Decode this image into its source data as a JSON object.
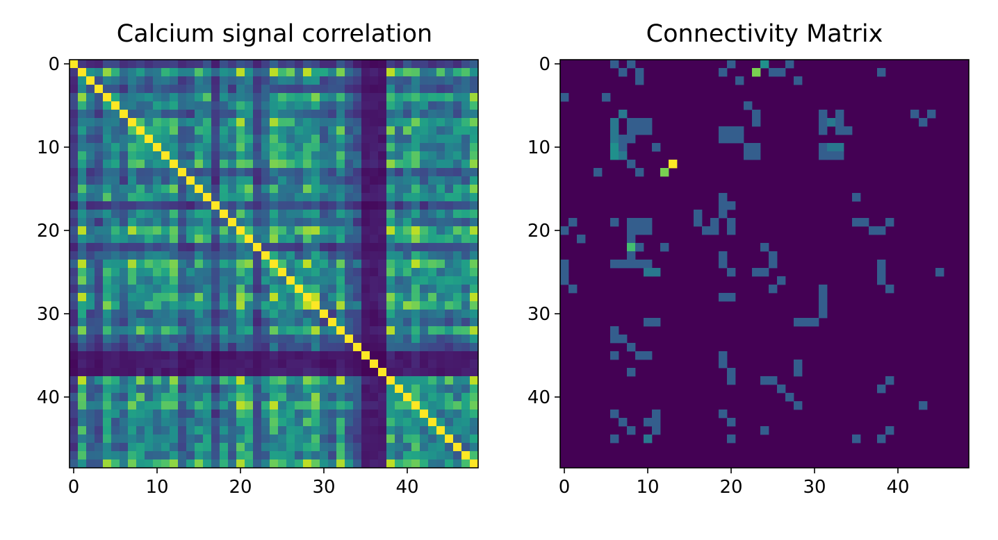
{
  "chart_data": [
    {
      "type": "heatmap",
      "title": "Calcium signal correlation",
      "xlabel": "",
      "ylabel": "",
      "size": 49,
      "xlim": [
        -0.5,
        48.5
      ],
      "ylim": [
        48.5,
        -0.5
      ],
      "xticks": [
        0,
        10,
        20,
        30,
        40
      ],
      "yticks": [
        0,
        10,
        20,
        30,
        40
      ],
      "xtick_labels": [
        "0",
        "10",
        "20",
        "30",
        "40"
      ],
      "ytick_labels": [
        "0",
        "10",
        "20",
        "30",
        "40"
      ],
      "colormap": "viridis",
      "value_range": [
        0,
        1
      ],
      "diagonal_value": 1.0,
      "description_of_values": "symmetric correlation matrix; dark bands near rows/columns 35-37"
    },
    {
      "type": "heatmap",
      "title": "Connectivity Matrix",
      "xlabel": "",
      "ylabel": "",
      "size": 49,
      "xlim": [
        -0.5,
        48.5
      ],
      "ylim": [
        48.5,
        -0.5
      ],
      "xticks": [
        0,
        10,
        20,
        30,
        40
      ],
      "yticks": [
        0,
        10,
        20,
        30,
        40
      ],
      "xtick_labels": [
        "0",
        "10",
        "20",
        "30",
        "40"
      ],
      "ytick_labels": [
        "0",
        "10",
        "20",
        "30",
        "40"
      ],
      "colormap": "viridis",
      "value_range": [
        0,
        1
      ],
      "background_value": 0,
      "cells": [
        [
          0,
          6,
          0.3
        ],
        [
          0,
          8,
          0.3
        ],
        [
          0,
          20,
          0.3
        ],
        [
          0,
          24,
          0.5
        ],
        [
          0,
          27,
          0.3
        ],
        [
          1,
          7,
          0.3
        ],
        [
          1,
          9,
          0.3
        ],
        [
          1,
          19,
          0.3
        ],
        [
          1,
          23,
          0.8
        ],
        [
          1,
          25,
          0.3
        ],
        [
          1,
          26,
          0.3
        ],
        [
          1,
          38,
          0.3
        ],
        [
          2,
          9,
          0.3
        ],
        [
          2,
          21,
          0.3
        ],
        [
          2,
          28,
          0.3
        ],
        [
          4,
          0,
          0.3
        ],
        [
          4,
          5,
          0.3
        ],
        [
          5,
          22,
          0.3
        ],
        [
          6,
          7,
          0.4
        ],
        [
          6,
          23,
          0.3
        ],
        [
          6,
          31,
          0.3
        ],
        [
          6,
          33,
          0.3
        ],
        [
          6,
          42,
          0.3
        ],
        [
          6,
          44,
          0.3
        ],
        [
          7,
          6,
          0.4
        ],
        [
          7,
          8,
          0.3
        ],
        [
          7,
          9,
          0.3
        ],
        [
          7,
          10,
          0.3
        ],
        [
          7,
          23,
          0.3
        ],
        [
          7,
          31,
          0.3
        ],
        [
          7,
          32,
          0.4
        ],
        [
          7,
          33,
          0.3
        ],
        [
          7,
          43,
          0.3
        ],
        [
          8,
          6,
          0.4
        ],
        [
          8,
          8,
          0.3
        ],
        [
          8,
          9,
          0.3
        ],
        [
          8,
          10,
          0.3
        ],
        [
          8,
          19,
          0.3
        ],
        [
          8,
          20,
          0.3
        ],
        [
          8,
          21,
          0.3
        ],
        [
          8,
          31,
          0.3
        ],
        [
          8,
          33,
          0.3
        ],
        [
          8,
          34,
          0.3
        ],
        [
          9,
          6,
          0.4
        ],
        [
          9,
          7,
          0.3
        ],
        [
          9,
          8,
          0.3
        ],
        [
          9,
          19,
          0.3
        ],
        [
          9,
          20,
          0.3
        ],
        [
          9,
          21,
          0.3
        ],
        [
          10,
          6,
          0.5
        ],
        [
          10,
          7,
          0.3
        ],
        [
          10,
          11,
          0.3
        ],
        [
          10,
          22,
          0.3
        ],
        [
          10,
          23,
          0.3
        ],
        [
          10,
          31,
          0.3
        ],
        [
          10,
          32,
          0.4
        ],
        [
          10,
          33,
          0.4
        ],
        [
          11,
          6,
          0.5
        ],
        [
          11,
          7,
          0.4
        ],
        [
          11,
          22,
          0.3
        ],
        [
          11,
          23,
          0.3
        ],
        [
          11,
          31,
          0.3
        ],
        [
          11,
          32,
          0.3
        ],
        [
          11,
          33,
          0.3
        ],
        [
          12,
          8,
          0.3
        ],
        [
          12,
          13,
          1.0
        ],
        [
          13,
          4,
          0.3
        ],
        [
          13,
          9,
          0.3
        ],
        [
          13,
          12,
          0.8
        ],
        [
          16,
          19,
          0.3
        ],
        [
          16,
          35,
          0.3
        ],
        [
          17,
          19,
          0.3
        ],
        [
          17,
          20,
          0.3
        ],
        [
          18,
          16,
          0.3
        ],
        [
          18,
          19,
          0.3
        ],
        [
          19,
          1,
          0.3
        ],
        [
          19,
          6,
          0.3
        ],
        [
          19,
          8,
          0.3
        ],
        [
          19,
          9,
          0.3
        ],
        [
          19,
          10,
          0.3
        ],
        [
          19,
          16,
          0.3
        ],
        [
          19,
          18,
          0.3
        ],
        [
          19,
          20,
          0.3
        ],
        [
          19,
          35,
          0.3
        ],
        [
          19,
          36,
          0.3
        ],
        [
          19,
          39,
          0.3
        ],
        [
          20,
          0,
          0.3
        ],
        [
          20,
          8,
          0.3
        ],
        [
          20,
          9,
          0.3
        ],
        [
          20,
          10,
          0.3
        ],
        [
          20,
          17,
          0.3
        ],
        [
          20,
          18,
          0.3
        ],
        [
          20,
          20,
          0.3
        ],
        [
          20,
          37,
          0.3
        ],
        [
          20,
          38,
          0.3
        ],
        [
          21,
          2,
          0.3
        ],
        [
          21,
          8,
          0.3
        ],
        [
          22,
          8,
          0.7
        ],
        [
          22,
          9,
          0.3
        ],
        [
          22,
          12,
          0.3
        ],
        [
          22,
          24,
          0.3
        ],
        [
          23,
          8,
          0.3
        ],
        [
          23,
          19,
          0.3
        ],
        [
          23,
          25,
          0.3
        ],
        [
          24,
          0,
          0.3
        ],
        [
          24,
          6,
          0.3
        ],
        [
          24,
          7,
          0.3
        ],
        [
          24,
          8,
          0.3
        ],
        [
          24,
          9,
          0.3
        ],
        [
          24,
          10,
          0.3
        ],
        [
          24,
          19,
          0.3
        ],
        [
          24,
          25,
          0.3
        ],
        [
          24,
          38,
          0.3
        ],
        [
          25,
          0,
          0.3
        ],
        [
          25,
          10,
          0.4
        ],
        [
          25,
          11,
          0.4
        ],
        [
          25,
          20,
          0.3
        ],
        [
          25,
          23,
          0.3
        ],
        [
          25,
          24,
          0.3
        ],
        [
          25,
          38,
          0.3
        ],
        [
          25,
          45,
          0.3
        ],
        [
          26,
          0,
          0.3
        ],
        [
          26,
          26,
          0.3
        ],
        [
          26,
          38,
          0.3
        ],
        [
          27,
          1,
          0.3
        ],
        [
          27,
          25,
          0.3
        ],
        [
          27,
          31,
          0.3
        ],
        [
          27,
          39,
          0.3
        ],
        [
          28,
          19,
          0.3
        ],
        [
          28,
          20,
          0.3
        ],
        [
          28,
          31,
          0.3
        ],
        [
          29,
          31,
          0.3
        ],
        [
          30,
          31,
          0.3
        ],
        [
          31,
          10,
          0.3
        ],
        [
          31,
          11,
          0.3
        ],
        [
          31,
          28,
          0.3
        ],
        [
          31,
          29,
          0.3
        ],
        [
          31,
          30,
          0.3
        ],
        [
          32,
          6,
          0.3
        ],
        [
          33,
          6,
          0.3
        ],
        [
          33,
          7,
          0.3
        ],
        [
          34,
          8,
          0.3
        ],
        [
          35,
          6,
          0.3
        ],
        [
          35,
          9,
          0.3
        ],
        [
          35,
          10,
          0.3
        ],
        [
          35,
          19,
          0.3
        ],
        [
          36,
          19,
          0.3
        ],
        [
          36,
          28,
          0.3
        ],
        [
          37,
          8,
          0.3
        ],
        [
          37,
          20,
          0.3
        ],
        [
          37,
          28,
          0.3
        ],
        [
          38,
          20,
          0.3
        ],
        [
          38,
          24,
          0.3
        ],
        [
          38,
          25,
          0.3
        ],
        [
          38,
          39,
          0.3
        ],
        [
          39,
          26,
          0.3
        ],
        [
          39,
          38,
          0.3
        ],
        [
          40,
          27,
          0.3
        ],
        [
          41,
          28,
          0.3
        ],
        [
          41,
          43,
          0.3
        ],
        [
          42,
          6,
          0.3
        ],
        [
          42,
          11,
          0.3
        ],
        [
          42,
          19,
          0.3
        ],
        [
          43,
          7,
          0.3
        ],
        [
          43,
          10,
          0.3
        ],
        [
          43,
          11,
          0.3
        ],
        [
          43,
          20,
          0.3
        ],
        [
          44,
          8,
          0.3
        ],
        [
          44,
          11,
          0.3
        ],
        [
          44,
          24,
          0.3
        ],
        [
          44,
          39,
          0.3
        ],
        [
          45,
          6,
          0.3
        ],
        [
          45,
          10,
          0.4
        ],
        [
          45,
          20,
          0.3
        ],
        [
          45,
          35,
          0.3
        ],
        [
          45,
          38,
          0.3
        ]
      ]
    }
  ]
}
